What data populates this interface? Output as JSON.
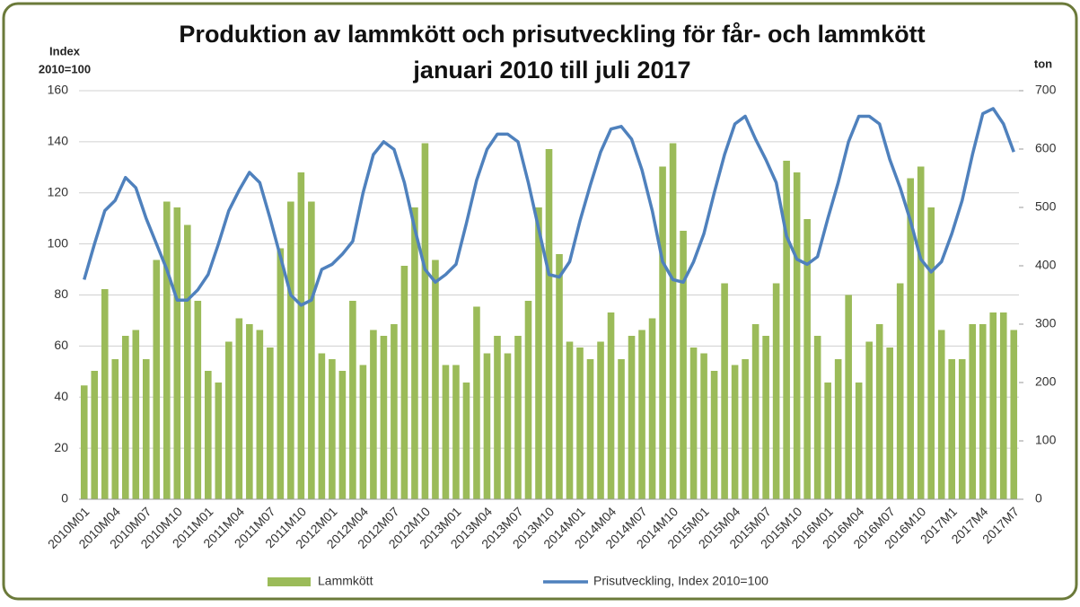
{
  "chart_data": {
    "type": "bar-line",
    "title": "Produktion av lammkött och prisutveckling för får- och lammkött",
    "subtitle": "januari 2010 till juli 2017",
    "ylabel": [
      "Index",
      "2010=100"
    ],
    "y2label": "ton",
    "categories": [
      "2010M01",
      null,
      null,
      "2010M04",
      null,
      null,
      "2010M07",
      null,
      null,
      "2010M10",
      null,
      null,
      "2011M01",
      null,
      null,
      "2011M04",
      null,
      null,
      "2011M07",
      null,
      null,
      "2011M10",
      null,
      null,
      "2012M01",
      null,
      null,
      "2012M04",
      null,
      null,
      "2012M07",
      null,
      null,
      "2012M10",
      null,
      null,
      "2013M01",
      null,
      null,
      "2013M04",
      null,
      null,
      "2013M07",
      null,
      null,
      "2013M10",
      null,
      null,
      "2014M01",
      null,
      null,
      "2014M04",
      null,
      null,
      "2014M07",
      null,
      null,
      "2014M10",
      null,
      null,
      "2015M01",
      null,
      null,
      "2015M04",
      null,
      null,
      "2015M07",
      null,
      null,
      "2015M10",
      null,
      null,
      "2016M01",
      null,
      null,
      "2016M04",
      null,
      null,
      "2016M07",
      null,
      null,
      "2016M10",
      null,
      null,
      "2017M1",
      null,
      null,
      "2017M4",
      null,
      null,
      "2017M7"
    ],
    "series": [
      {
        "name": "Lammkött",
        "type": "bar",
        "axis": "y2",
        "color": "#9bbb59",
        "values": [
          195,
          220,
          360,
          240,
          280,
          290,
          240,
          410,
          510,
          500,
          470,
          340,
          220,
          200,
          270,
          310,
          300,
          290,
          260,
          430,
          510,
          560,
          510,
          250,
          240,
          220,
          340,
          230,
          290,
          280,
          300,
          400,
          500,
          610,
          410,
          230,
          230,
          200,
          330,
          250,
          280,
          250,
          280,
          340,
          500,
          600,
          420,
          270,
          260,
          240,
          270,
          320,
          240,
          280,
          290,
          310,
          570,
          610,
          460,
          260,
          250,
          220,
          370,
          230,
          240,
          300,
          280,
          370,
          580,
          560,
          480,
          280,
          200,
          240,
          350,
          200,
          270,
          300,
          260,
          370,
          550,
          570,
          500,
          290,
          240,
          240,
          300,
          300,
          320,
          320,
          290
        ]
      },
      {
        "name": "Prisutveckling, Index 2010=100",
        "type": "line",
        "axis": "y",
        "color": "#4f81bd",
        "values": [
          86,
          100,
          113,
          117,
          126,
          122,
          110,
          100,
          90,
          78,
          78,
          82,
          88,
          100,
          113,
          121,
          128,
          124,
          110,
          95,
          80,
          76,
          78,
          90,
          92,
          96,
          101,
          120,
          135,
          140,
          137,
          124,
          106,
          90,
          85,
          88,
          92,
          108,
          125,
          137,
          143,
          143,
          140,
          124,
          106,
          88,
          87,
          93,
          109,
          123,
          136,
          145,
          146,
          141,
          129,
          113,
          93,
          86,
          85,
          93,
          104,
          120,
          135,
          147,
          150,
          141,
          133,
          124,
          103,
          94,
          92,
          95,
          110,
          124,
          140,
          150,
          150,
          147,
          133,
          122,
          109,
          94,
          89,
          93,
          104,
          117,
          135,
          151,
          153,
          147,
          136
        ]
      }
    ],
    "ylim": [
      0,
      160
    ],
    "yticks": [
      0,
      20,
      40,
      60,
      80,
      100,
      120,
      140,
      160
    ],
    "y2lim": [
      0,
      700
    ],
    "y2ticks": [
      0,
      100,
      200,
      300,
      400,
      500,
      600,
      700
    ],
    "grid": true,
    "legend": "bottom"
  }
}
